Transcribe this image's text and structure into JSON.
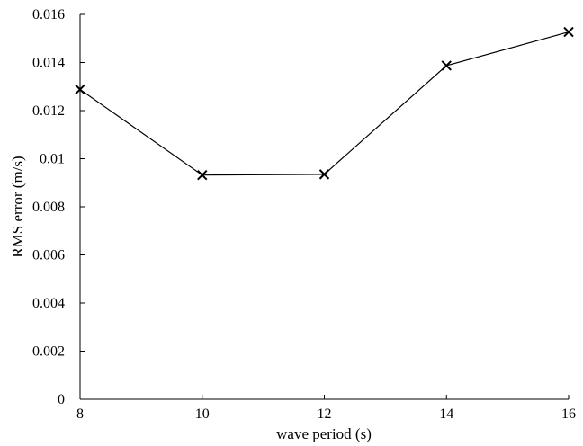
{
  "chart_data": {
    "type": "line",
    "title": "",
    "xlabel": "wave period  (s)",
    "ylabel": "RMS error  (m/s)",
    "x": [
      8,
      10,
      12,
      14,
      16
    ],
    "series": [
      {
        "values": [
          0.01288,
          0.00932,
          0.00935,
          0.01387,
          0.01527
        ]
      }
    ],
    "xlim": [
      8,
      16
    ],
    "ylim": [
      0,
      0.016
    ],
    "xticks": [
      "8",
      "10",
      "12",
      "14",
      "16"
    ],
    "yticks": [
      "0",
      "0.002",
      "0.004",
      "0.006",
      "0.008",
      "0.01",
      "0.012",
      "0.014",
      "0.016"
    ],
    "marker": "x",
    "grid": false,
    "line_color": "#000000"
  }
}
